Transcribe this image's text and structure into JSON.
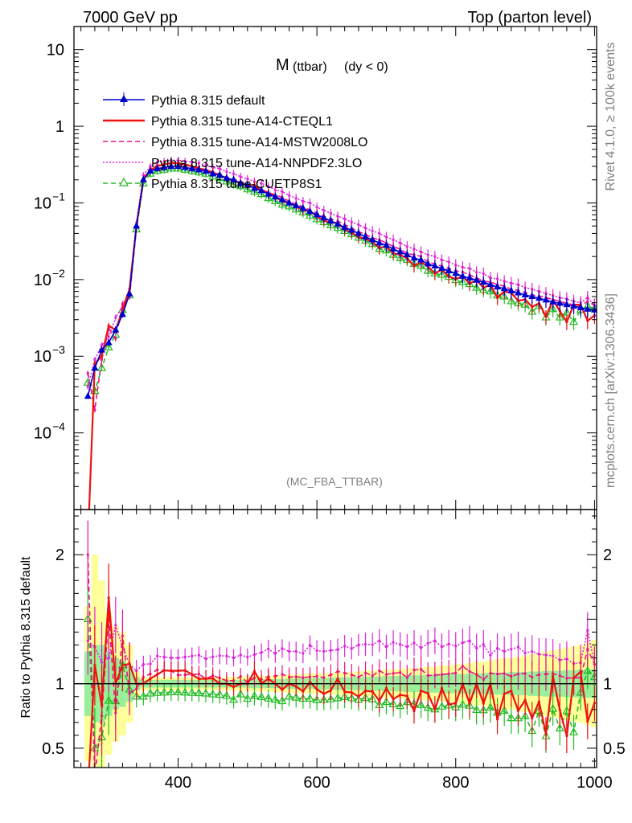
{
  "header": {
    "left": "7000 GeV pp",
    "right": "Top (parton level)"
  },
  "side": {
    "rivet": "Rivet 4.1.0, ≥ 100k events",
    "mcplots": "mcplots.cern.ch [arXiv:1306.3436]"
  },
  "chart_data": {
    "type": "line",
    "title_main": "M",
    "title_sub": "(ttbar)",
    "title_cut": "(dy < 0)",
    "analysis": "(MC_FBA_TTBAR)",
    "ylabel_ratio": "Ratio to Pythia 8.315 default",
    "xlim": [
      250,
      1003
    ],
    "ylim_main": [
      1e-05,
      20
    ],
    "ylim_ratio": [
      0.35,
      2.35
    ],
    "main_ticks": [
      {
        "v": 10,
        "label": "10"
      },
      {
        "v": 1,
        "label": "1"
      },
      {
        "v": 0.1,
        "base": "10",
        "exp": "−1"
      },
      {
        "v": 0.01,
        "base": "10",
        "exp": "−2"
      },
      {
        "v": 0.001,
        "base": "10",
        "exp": "−3"
      },
      {
        "v": 0.0001,
        "base": "10",
        "exp": "−4"
      }
    ],
    "ratio_ticks": [
      {
        "v": 2,
        "label": "2"
      },
      {
        "v": 1,
        "label": "1"
      },
      {
        "v": 0.5,
        "label": "0.5"
      }
    ],
    "x_ticks": [
      {
        "v": 400,
        "label": "400"
      },
      {
        "v": 600,
        "label": "600"
      },
      {
        "v": 800,
        "label": "800"
      },
      {
        "v": 1000,
        "label": "1000"
      }
    ],
    "legend": [
      {
        "name": "Pythia 8.315 default",
        "color": "#0000cc",
        "style": "solid",
        "marker": "triangle-filled"
      },
      {
        "name": "Pythia 8.315 tune-A14-CTEQL1",
        "color": "#ee1111",
        "style": "solid",
        "marker": "none"
      },
      {
        "name": "Pythia 8.315 tune-A14-MSTW2008LO",
        "color": "#ee1188",
        "style": "dashed",
        "marker": "none"
      },
      {
        "name": "Pythia 8.315 tune-A14-NNPDF2.3LO",
        "color": "#dd22dd",
        "style": "dotted",
        "marker": "none"
      },
      {
        "name": "Pythia 8.315 tune-CUETP8S1",
        "color": "#22bb22",
        "style": "dashed",
        "marker": "triangle-open"
      }
    ],
    "x": [
      270,
      280,
      290,
      300,
      310,
      320,
      330,
      340,
      350,
      360,
      370,
      380,
      390,
      400,
      410,
      420,
      430,
      440,
      450,
      460,
      470,
      480,
      490,
      500,
      510,
      520,
      530,
      540,
      550,
      560,
      570,
      580,
      590,
      600,
      610,
      620,
      630,
      640,
      650,
      660,
      670,
      680,
      690,
      700,
      710,
      720,
      730,
      740,
      750,
      760,
      770,
      780,
      790,
      800,
      810,
      820,
      830,
      840,
      850,
      860,
      870,
      880,
      890,
      900,
      910,
      920,
      930,
      940,
      950,
      960,
      970,
      980,
      990,
      1000
    ],
    "series": [
      {
        "name": "Pythia 8.315 default",
        "values": [
          0.0003,
          0.0007,
          0.0012,
          0.0015,
          0.0022,
          0.0035,
          0.0065,
          0.05,
          0.2,
          0.26,
          0.28,
          0.29,
          0.3,
          0.3,
          0.29,
          0.28,
          0.27,
          0.26,
          0.24,
          0.23,
          0.21,
          0.2,
          0.18,
          0.17,
          0.155,
          0.145,
          0.13,
          0.12,
          0.11,
          0.1,
          0.092,
          0.085,
          0.077,
          0.07,
          0.064,
          0.058,
          0.053,
          0.048,
          0.044,
          0.04,
          0.036,
          0.033,
          0.03,
          0.028,
          0.025,
          0.023,
          0.021,
          0.019,
          0.018,
          0.016,
          0.015,
          0.014,
          0.013,
          0.012,
          0.011,
          0.0105,
          0.0098,
          0.0092,
          0.0086,
          0.008,
          0.0076,
          0.0071,
          0.0067,
          0.0063,
          0.006,
          0.0057,
          0.0054,
          0.0051,
          0.0049,
          0.0047,
          0.0045,
          0.0043,
          0.0041,
          0.004
        ]
      },
      {
        "name": "Pythia 8.315 tune-A14-CTEQL1",
        "values": [
          4e-07,
          0.0008,
          0.001,
          0.0025,
          0.0022,
          0.004,
          0.0075,
          0.05,
          0.2,
          0.27,
          0.3,
          0.32,
          0.33,
          0.33,
          0.32,
          0.3,
          0.28,
          0.27,
          0.25,
          0.23,
          0.21,
          0.195,
          0.18,
          0.17,
          0.17,
          0.145,
          0.135,
          0.12,
          0.105,
          0.1,
          0.09,
          0.08,
          0.078,
          0.067,
          0.059,
          0.055,
          0.055,
          0.045,
          0.041,
          0.036,
          0.034,
          0.031,
          0.026,
          0.027,
          0.022,
          0.021,
          0.019,
          0.015,
          0.017,
          0.0148,
          0.012,
          0.0135,
          0.0109,
          0.0102,
          0.011,
          0.0089,
          0.0098,
          0.0078,
          0.0086,
          0.0058,
          0.007,
          0.0067,
          0.0053,
          0.0055,
          0.0044,
          0.0049,
          0.0033,
          0.0054,
          0.0039,
          0.0028,
          0.0047,
          0.0047,
          0.0029,
          0.0034
        ]
      },
      {
        "name": "Pythia 8.315 tune-A14-MSTW2008LO",
        "values": [
          0.0006,
          0.0002,
          0.0009,
          0.0023,
          0.0017,
          0.0048,
          0.006,
          0.048,
          0.21,
          0.28,
          0.31,
          0.32,
          0.33,
          0.32,
          0.31,
          0.3,
          0.29,
          0.27,
          0.255,
          0.24,
          0.215,
          0.205,
          0.19,
          0.172,
          0.162,
          0.15,
          0.137,
          0.127,
          0.118,
          0.105,
          0.097,
          0.089,
          0.081,
          0.074,
          0.067,
          0.062,
          0.058,
          0.052,
          0.047,
          0.042,
          0.039,
          0.035,
          0.033,
          0.03,
          0.027,
          0.025,
          0.022,
          0.021,
          0.02,
          0.017,
          0.016,
          0.015,
          0.014,
          0.013,
          0.0125,
          0.0115,
          0.0105,
          0.0095,
          0.0093,
          0.0086,
          0.0082,
          0.0075,
          0.0072,
          0.0068,
          0.0063,
          0.0061,
          0.0058,
          0.0055,
          0.0052,
          0.0049,
          0.0047,
          0.0045,
          0.0052,
          0.0046
        ]
      },
      {
        "name": "Pythia 8.315 tune-A14-NNPDF2.3LO",
        "values": [
          0.0004,
          0.0009,
          0.0014,
          0.0018,
          0.0032,
          0.0045,
          0.0075,
          0.055,
          0.23,
          0.3,
          0.34,
          0.35,
          0.36,
          0.36,
          0.35,
          0.34,
          0.33,
          0.31,
          0.29,
          0.28,
          0.255,
          0.24,
          0.22,
          0.205,
          0.19,
          0.18,
          0.165,
          0.148,
          0.14,
          0.125,
          0.115,
          0.105,
          0.1,
          0.088,
          0.08,
          0.073,
          0.067,
          0.062,
          0.056,
          0.052,
          0.047,
          0.043,
          0.04,
          0.036,
          0.033,
          0.03,
          0.027,
          0.025,
          0.023,
          0.021,
          0.02,
          0.018,
          0.017,
          0.0155,
          0.0145,
          0.014,
          0.0125,
          0.012,
          0.0105,
          0.0102,
          0.0095,
          0.009,
          0.0086,
          0.0078,
          0.0075,
          0.007,
          0.0066,
          0.0062,
          0.0058,
          0.0056,
          0.0052,
          0.005,
          0.0058,
          0.0046
        ]
      },
      {
        "name": "Pythia 8.315 tune-CUETP8S1",
        "values": [
          0.00045,
          0.00035,
          0.0007,
          0.0013,
          0.0019,
          0.004,
          0.0062,
          0.045,
          0.18,
          0.24,
          0.26,
          0.27,
          0.28,
          0.28,
          0.27,
          0.26,
          0.25,
          0.24,
          0.22,
          0.21,
          0.19,
          0.175,
          0.165,
          0.15,
          0.14,
          0.13,
          0.115,
          0.105,
          0.095,
          0.09,
          0.082,
          0.075,
          0.068,
          0.061,
          0.056,
          0.051,
          0.047,
          0.043,
          0.039,
          0.035,
          0.032,
          0.029,
          0.025,
          0.024,
          0.021,
          0.019,
          0.018,
          0.016,
          0.015,
          0.013,
          0.012,
          0.0115,
          0.0108,
          0.0098,
          0.0092,
          0.0087,
          0.0078,
          0.0073,
          0.007,
          0.0062,
          0.006,
          0.0052,
          0.0049,
          0.0047,
          0.0038,
          0.0045,
          0.0032,
          0.0041,
          0.0032,
          0.0037,
          0.0028,
          0.004,
          0.0045,
          0.0042
        ]
      }
    ],
    "band_inner": [
      0.25,
      0.3,
      0.3,
      0.25,
      0.2,
      0.18,
      0.14,
      0.05,
      0.03,
      0.03,
      0.03,
      0.03,
      0.03,
      0.03,
      0.03,
      0.03,
      0.03,
      0.03,
      0.03,
      0.03,
      0.03,
      0.03,
      0.03,
      0.03,
      0.035,
      0.035,
      0.035,
      0.035,
      0.035,
      0.04,
      0.04,
      0.04,
      0.04,
      0.045,
      0.045,
      0.045,
      0.05,
      0.05,
      0.05,
      0.05,
      0.055,
      0.055,
      0.055,
      0.06,
      0.06,
      0.06,
      0.065,
      0.065,
      0.065,
      0.07,
      0.07,
      0.07,
      0.075,
      0.075,
      0.075,
      0.08,
      0.08,
      0.08,
      0.085,
      0.085,
      0.085,
      0.09,
      0.09,
      0.09,
      0.095,
      0.095,
      0.1,
      0.1,
      0.1,
      0.105,
      0.105,
      0.11,
      0.11,
      0.11
    ],
    "band_outer": [
      0.6,
      1.0,
      0.8,
      0.55,
      0.45,
      0.4,
      0.3,
      0.1,
      0.05,
      0.05,
      0.05,
      0.05,
      0.05,
      0.05,
      0.05,
      0.05,
      0.05,
      0.05,
      0.05,
      0.05,
      0.05,
      0.055,
      0.055,
      0.055,
      0.06,
      0.06,
      0.06,
      0.065,
      0.065,
      0.07,
      0.07,
      0.075,
      0.075,
      0.08,
      0.08,
      0.085,
      0.085,
      0.09,
      0.09,
      0.095,
      0.1,
      0.1,
      0.105,
      0.11,
      0.11,
      0.115,
      0.12,
      0.12,
      0.125,
      0.13,
      0.13,
      0.14,
      0.14,
      0.15,
      0.15,
      0.16,
      0.17,
      0.17,
      0.18,
      0.19,
      0.2,
      0.2,
      0.21,
      0.22,
      0.23,
      0.24,
      0.25,
      0.26,
      0.27,
      0.28,
      0.29,
      0.3,
      0.32,
      0.34
    ]
  }
}
